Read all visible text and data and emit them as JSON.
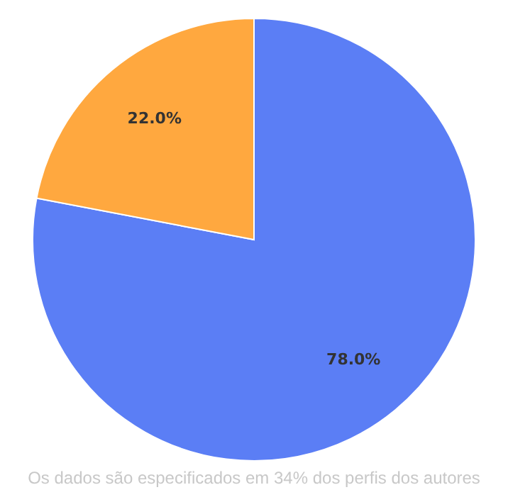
{
  "chart_data": {
    "type": "pie",
    "categories": [
      null,
      null
    ],
    "values": [
      78.0,
      22.0
    ],
    "colors": [
      "#5b7ef5",
      "#ffa83f"
    ],
    "value_labels": [
      "78.0%",
      "22.0%"
    ],
    "annotations": [
      "Os dados são especificados em 34% dos perfis dos autores"
    ]
  }
}
